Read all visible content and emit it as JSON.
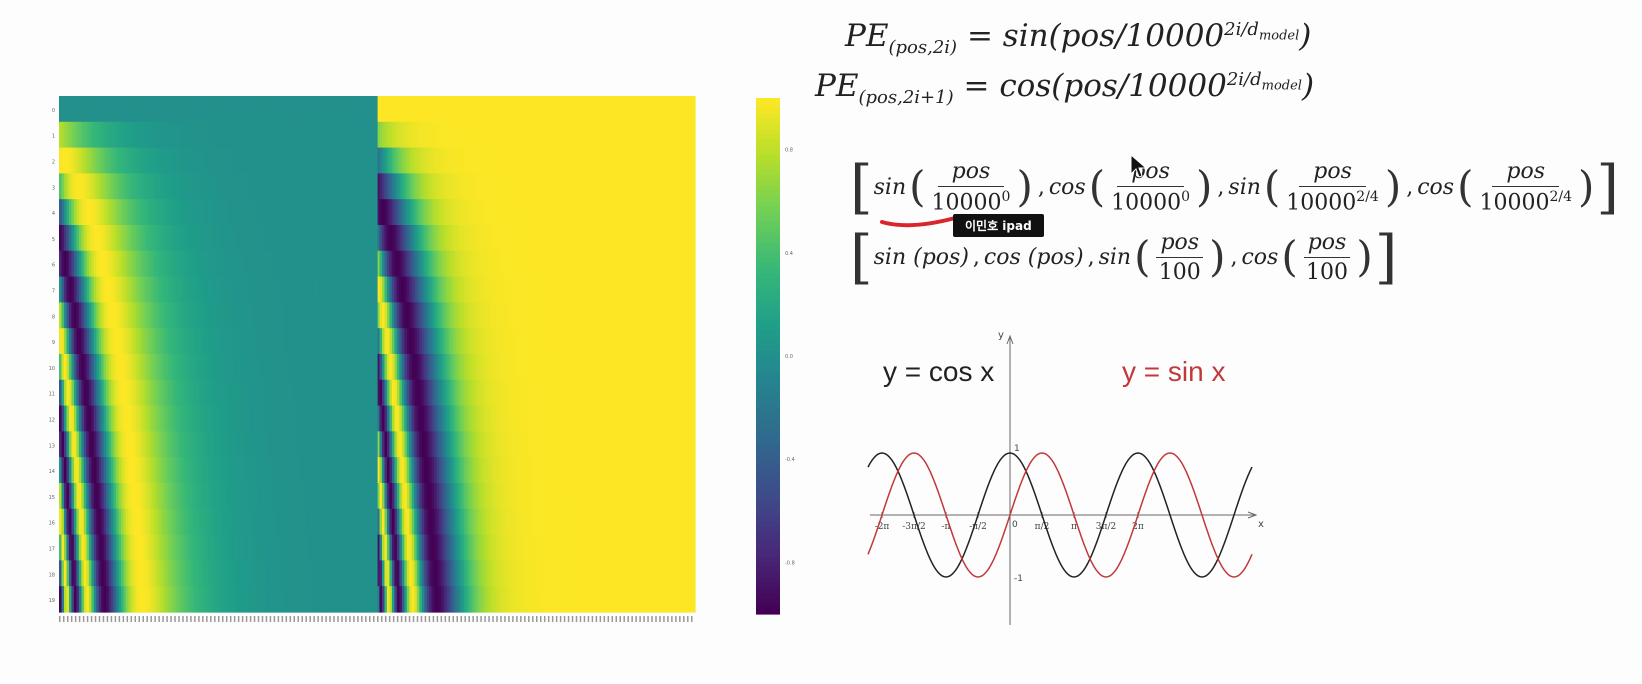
{
  "heatmap": {
    "colormap": "viridis",
    "y_tick_labels": [
      "0",
      "1",
      "2",
      "3",
      "4",
      "5",
      "6",
      "7",
      "8",
      "9",
      "10",
      "11",
      "12",
      "13",
      "14",
      "15",
      "16",
      "17",
      "18",
      "19"
    ],
    "colorbar_ticks": [
      "0.8",
      "0.4",
      "0.0",
      "-0.4",
      "-0.8"
    ]
  },
  "formulas": {
    "pe_sin": "PE",
    "pe_sin_sub": "(pos,2i)",
    "pe_sin_rhs_fn": "sin",
    "pe_cos": "PE",
    "pe_cos_sub": "(pos,2i+1)",
    "pe_cos_rhs_fn": "cos",
    "rhs_arg_pre": "(pos/10000",
    "rhs_exp": "2i/d",
    "rhs_exp_sub": "model",
    "rhs_close": ")",
    "equals": "="
  },
  "vector_row1": {
    "terms": [
      {
        "fn": "sin",
        "num": "pos",
        "den_base": "10000",
        "den_exp": "0"
      },
      {
        "fn": "cos",
        "num": "pos",
        "den_base": "10000",
        "den_exp": "0"
      },
      {
        "fn": "sin",
        "num": "pos",
        "den_base": "10000",
        "den_exp": "2/4"
      },
      {
        "fn": "cos",
        "num": "pos",
        "den_base": "10000",
        "den_exp": "2/4"
      }
    ]
  },
  "vector_row2": {
    "t1": "sin (pos)",
    "t2": "cos (pos)",
    "t3_fn": "sin",
    "t3_num": "pos",
    "t3_den": "100",
    "t4_fn": "cos",
    "t4_num": "pos",
    "t4_den": "100"
  },
  "tooltip": {
    "text": "이민호 ipad"
  },
  "graph": {
    "label_cos": "y = cos x",
    "label_sin": "y = sin x",
    "axis_y": "y",
    "axis_x": "x",
    "tick_one": "1",
    "tick_neg_one": "-1",
    "tick_zero": "0",
    "ticks_x": [
      "-2π",
      "-3π/2",
      "-π",
      "-π/2",
      "π/2",
      "π",
      "3π/2",
      "2π"
    ],
    "color_cos": "#222222",
    "color_sin": "#c0393b"
  }
}
